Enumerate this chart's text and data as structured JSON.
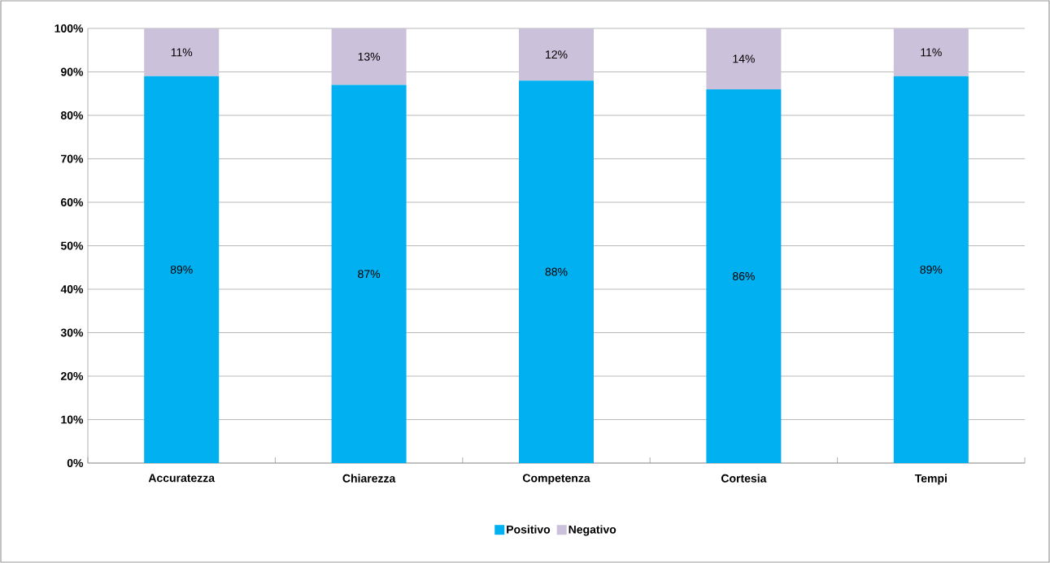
{
  "chart_data": {
    "type": "bar",
    "stacked": true,
    "categories": [
      "Accuratezza",
      "Chiarezza",
      "Competenza",
      "Cortesia",
      "Tempi"
    ],
    "series": [
      {
        "name": "Positivo",
        "color": "#00b0f0",
        "values": [
          89,
          87,
          88,
          86,
          89
        ],
        "value_labels": [
          "89%",
          "87%",
          "88%",
          "86%",
          "89%"
        ]
      },
      {
        "name": "Negativo",
        "color": "#ccc1da",
        "values": [
          11,
          13,
          12,
          14,
          11
        ],
        "value_labels": [
          "11%",
          "13%",
          "12%",
          "14%",
          "11%"
        ]
      }
    ],
    "ylim": [
      0,
      100
    ],
    "yticks": [
      {
        "value": 0,
        "label": "0%"
      },
      {
        "value": 10,
        "label": "10%"
      },
      {
        "value": 20,
        "label": "20%"
      },
      {
        "value": 30,
        "label": "30%"
      },
      {
        "value": 40,
        "label": "40%"
      },
      {
        "value": 50,
        "label": "50%"
      },
      {
        "value": 60,
        "label": "60%"
      },
      {
        "value": 70,
        "label": "70%"
      },
      {
        "value": 80,
        "label": "80%"
      },
      {
        "value": 90,
        "label": "90%"
      },
      {
        "value": 100,
        "label": "100%"
      }
    ],
    "grid": "y",
    "legend": "bottom"
  }
}
